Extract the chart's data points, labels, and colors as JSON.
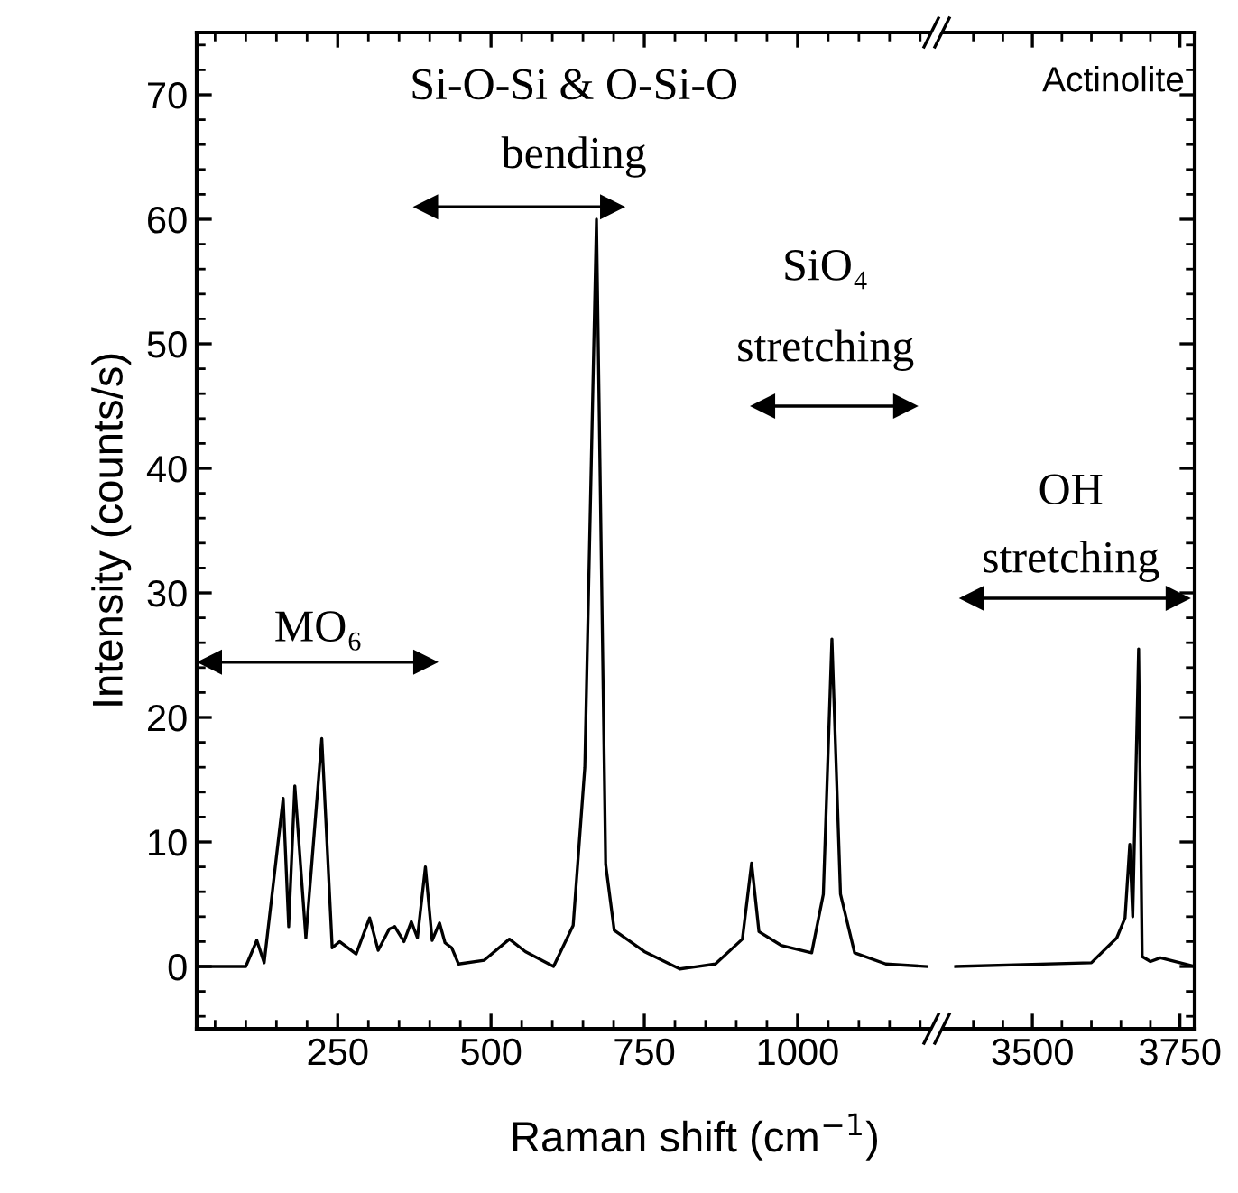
{
  "chart_data": [
    {
      "type": "line",
      "xlabel": "Raman shift (cm$^{−1}$)",
      "ylabel": "Intensity (counts/s)",
      "x": [
        20,
        100,
        118,
        130,
        161,
        170,
        180,
        198,
        224,
        241,
        253,
        280,
        302,
        316,
        334,
        343,
        358,
        370,
        380,
        393,
        404,
        416,
        425,
        436,
        447,
        489,
        530,
        556,
        602,
        634,
        653,
        672,
        687,
        701,
        750,
        808,
        866,
        910,
        925,
        937,
        973,
        1023,
        1042,
        1056,
        1070,
        1093,
        1144,
        1210
      ],
      "series": [
        {
          "color": "#000000",
          "values": [
            0,
            0,
            2.1,
            0.3,
            13.5,
            3.2,
            14.5,
            2.3,
            18.3,
            1.5,
            2.0,
            1.0,
            3.9,
            1.3,
            3.0,
            3.2,
            2.0,
            3.6,
            2.3,
            8.0,
            2.1,
            3.5,
            1.9,
            1.5,
            0.2,
            0.5,
            2.2,
            1.2,
            0,
            3.3,
            16,
            60,
            8.2,
            2.9,
            1.2,
            -0.2,
            0.2,
            2.2,
            8.3,
            2.8,
            1.7,
            1.1,
            5.8,
            26.3,
            5.8,
            1.1,
            0.2,
            0
          ]
        }
      ],
      "xlim": [
        20,
        1215
      ],
      "ylim": [
        -5,
        75
      ],
      "xticks": [
        {
          "value": 50,
          "label": null
        },
        {
          "value": 100,
          "label": null
        },
        {
          "value": 150,
          "label": null
        },
        {
          "value": 200,
          "label": null
        },
        250,
        {
          "value": 300,
          "label": null
        },
        {
          "value": 350,
          "label": null
        },
        {
          "value": 400,
          "label": null
        },
        {
          "value": 450,
          "label": null
        },
        500,
        {
          "value": 550,
          "label": null
        },
        {
          "value": 600,
          "label": null
        },
        {
          "value": 650,
          "label": null
        },
        {
          "value": 700,
          "label": null
        },
        750,
        {
          "value": 800,
          "label": null
        },
        {
          "value": 850,
          "label": null
        },
        {
          "value": 900,
          "label": null
        },
        {
          "value": 950,
          "label": null
        },
        1000,
        {
          "value": 1050,
          "label": null
        },
        {
          "value": 1100,
          "label": null
        },
        {
          "value": 1150,
          "label": null
        },
        {
          "value": 1200,
          "label": null
        }
      ],
      "yticks": [
        {
          "value": -4,
          "label": null
        },
        {
          "value": -2,
          "label": null
        },
        0,
        {
          "value": 2,
          "label": null
        },
        {
          "value": 4,
          "label": null
        },
        {
          "value": 6,
          "label": null
        },
        {
          "value": 8,
          "label": null
        },
        10,
        {
          "value": 12,
          "label": null
        },
        {
          "value": 14,
          "label": null
        },
        {
          "value": 16,
          "label": null
        },
        {
          "value": 18,
          "label": null
        },
        20,
        {
          "value": 22,
          "label": null
        },
        {
          "value": 24,
          "label": null
        },
        {
          "value": 26,
          "label": null
        },
        {
          "value": 28,
          "label": null
        },
        30,
        {
          "value": 32,
          "label": null
        },
        {
          "value": 34,
          "label": null
        },
        {
          "value": 36,
          "label": null
        },
        {
          "value": 38,
          "label": null
        },
        40,
        {
          "value": 42,
          "label": null
        },
        {
          "value": 44,
          "label": null
        },
        {
          "value": 46,
          "label": null
        },
        {
          "value": 48,
          "label": null
        },
        50,
        {
          "value": 52,
          "label": null
        },
        {
          "value": 54,
          "label": null
        },
        {
          "value": 56,
          "label": null
        },
        {
          "value": 58,
          "label": null
        },
        60,
        {
          "value": 62,
          "label": null
        },
        {
          "value": 64,
          "label": null
        },
        {
          "value": 66,
          "label": null
        },
        {
          "value": 68,
          "label": null
        },
        70,
        {
          "value": 72,
          "label": null
        },
        {
          "value": 74,
          "label": null
        }
      ],
      "annotations": [
        "MO₆",
        "Si-O-Si & O-Si-O",
        "bending",
        "SiO₄",
        "stretching"
      ],
      "grid": false,
      "legend": false
    },
    {
      "type": "line",
      "x": [
        3370,
        3600,
        3643,
        3657,
        3665,
        3670,
        3680,
        3686,
        3700,
        3717,
        3775
      ],
      "series": [
        {
          "color": "#000000",
          "values": [
            0,
            0.3,
            2.3,
            3.9,
            9.8,
            4.0,
            25.5,
            0.8,
            0.4,
            0.7,
            0
          ]
        }
      ],
      "xlim": [
        3350,
        3775
      ],
      "ylim": [
        -5,
        75
      ],
      "xticks": [
        {
          "value": 3400,
          "label": null
        },
        {
          "value": 3450,
          "label": null
        },
        3500,
        {
          "value": 3550,
          "label": null
        },
        {
          "value": 3600,
          "label": null
        },
        {
          "value": 3650,
          "label": null
        },
        {
          "value": 3700,
          "label": null
        },
        3750
      ],
      "yticks": [
        {
          "value": -4,
          "label": null
        },
        {
          "value": -2,
          "label": null
        },
        0,
        {
          "value": 2,
          "label": null
        },
        {
          "value": 4,
          "label": null
        },
        {
          "value": 6,
          "label": null
        },
        {
          "value": 8,
          "label": null
        },
        10,
        {
          "value": 12,
          "label": null
        },
        {
          "value": 14,
          "label": null
        },
        {
          "value": 16,
          "label": null
        },
        {
          "value": 18,
          "label": null
        },
        20,
        {
          "value": 22,
          "label": null
        },
        {
          "value": 24,
          "label": null
        },
        {
          "value": 26,
          "label": null
        },
        {
          "value": 28,
          "label": null
        },
        30,
        {
          "value": 32,
          "label": null
        },
        {
          "value": 34,
          "label": null
        },
        {
          "value": 36,
          "label": null
        },
        {
          "value": 38,
          "label": null
        },
        40,
        {
          "value": 42,
          "label": null
        },
        {
          "value": 44,
          "label": null
        },
        {
          "value": 46,
          "label": null
        },
        {
          "value": 48,
          "label": null
        },
        50,
        {
          "value": 52,
          "label": null
        },
        {
          "value": 54,
          "label": null
        },
        {
          "value": 56,
          "label": null
        },
        {
          "value": 58,
          "label": null
        },
        60,
        {
          "value": 62,
          "label": null
        },
        {
          "value": 64,
          "label": null
        },
        {
          "value": 66,
          "label": null
        },
        {
          "value": 68,
          "label": null
        },
        70,
        {
          "value": 72,
          "label": null
        },
        {
          "value": 74,
          "label": null
        }
      ],
      "annotations": [
        "Actinolite",
        "OH",
        "stretching"
      ],
      "tick_labels": "x",
      "grid": false,
      "legend": false
    }
  ]
}
